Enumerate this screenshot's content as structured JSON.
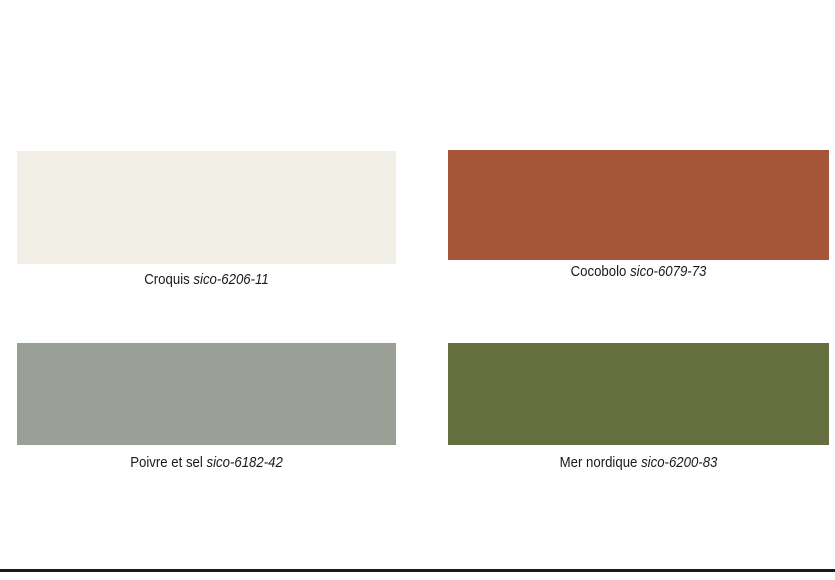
{
  "swatches": [
    {
      "name": "Croquis",
      "code": "sico-6206-11",
      "color": "#F2F0E6"
    },
    {
      "name": "Cocobolo",
      "code": "sico-6079-73",
      "color": "#A65539"
    },
    {
      "name": "Poivre et sel",
      "code": "sico-6182-42",
      "color": "#9AA096"
    },
    {
      "name": "Mer nordique",
      "code": "sico-6200-83",
      "color": "#656F40"
    }
  ]
}
